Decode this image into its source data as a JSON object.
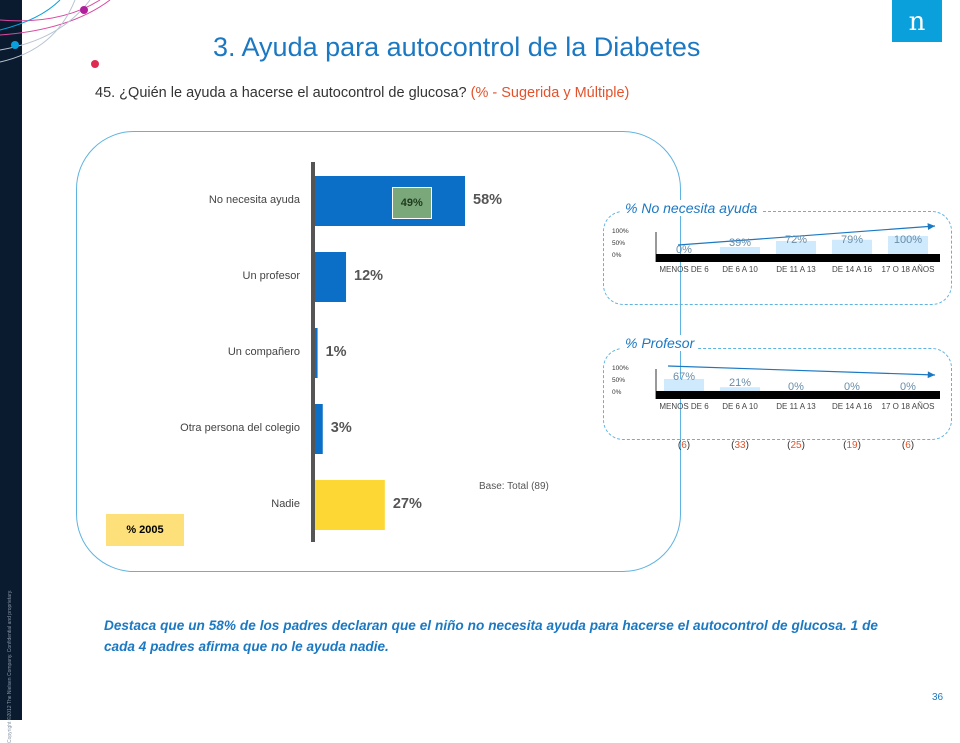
{
  "title": "3. Ayuda para autocontrol de la Diabetes",
  "question": "45. ¿Quién le ayuda a hacerse el autocontrol de glucosa?",
  "question_note": "(% - Sugerida y Múltiple)",
  "logo_text": "n",
  "copyright": "Copyright ©2012 The Nielsen Company. Confidential and proprietary.",
  "base_note": "Base: Total (89)",
  "legend_2005": "% 2005",
  "summary": "Destaca que un 58% de los padres declaran que el niño no necesita ayuda para hacerse el autocontrol de glucosa. 1 de cada 4 padres afirma que no le ayuda nadie.",
  "page_number": "36",
  "colors": {
    "bar_blue": "#0b6fc7",
    "bar_yellow": "#fdd835",
    "badge_green": "#7aa87a",
    "accent": "#1b78c2"
  },
  "chart_data": [
    {
      "type": "bar",
      "orientation": "horizontal",
      "categories": [
        "No necesita ayuda",
        "Un profesor",
        "Un compañero",
        "Otra persona del colegio",
        "Nadie"
      ],
      "value_labels": [
        "58%",
        "12%",
        "1%",
        "3%",
        "27%"
      ],
      "values": [
        58,
        12,
        1,
        3,
        27
      ],
      "comparison_2005": {
        "category": "No necesita ayuda",
        "label": "49%",
        "value": 49
      }
    },
    {
      "type": "bar",
      "title": "% No necesita ayuda",
      "categories": [
        "MENOS DE 6",
        "DE 6 A 10",
        "DE 11 A 13",
        "DE 14 A 16",
        "17 O 18 AÑOS"
      ],
      "value_labels": [
        "0%",
        "39%",
        "72%",
        "79%",
        "100%"
      ],
      "values": [
        0,
        39,
        72,
        79,
        100
      ],
      "yticks": [
        "100%",
        "50%",
        "0%"
      ],
      "ylim": [
        0,
        100
      ]
    },
    {
      "type": "bar",
      "title": "% Profesor",
      "categories": [
        "MENOS DE 6",
        "DE 6 A 10",
        "DE 11 A 13",
        "DE 14 A 16",
        "17 O 18 AÑOS"
      ],
      "value_labels": [
        "67%",
        "21%",
        "0%",
        "0%",
        "0%"
      ],
      "values": [
        67,
        21,
        0,
        0,
        0
      ],
      "yticks": [
        "100%",
        "50%",
        "0%"
      ],
      "ylim": [
        0,
        100
      ],
      "bases": [
        "6",
        "33",
        "25",
        "19",
        "6"
      ]
    }
  ]
}
